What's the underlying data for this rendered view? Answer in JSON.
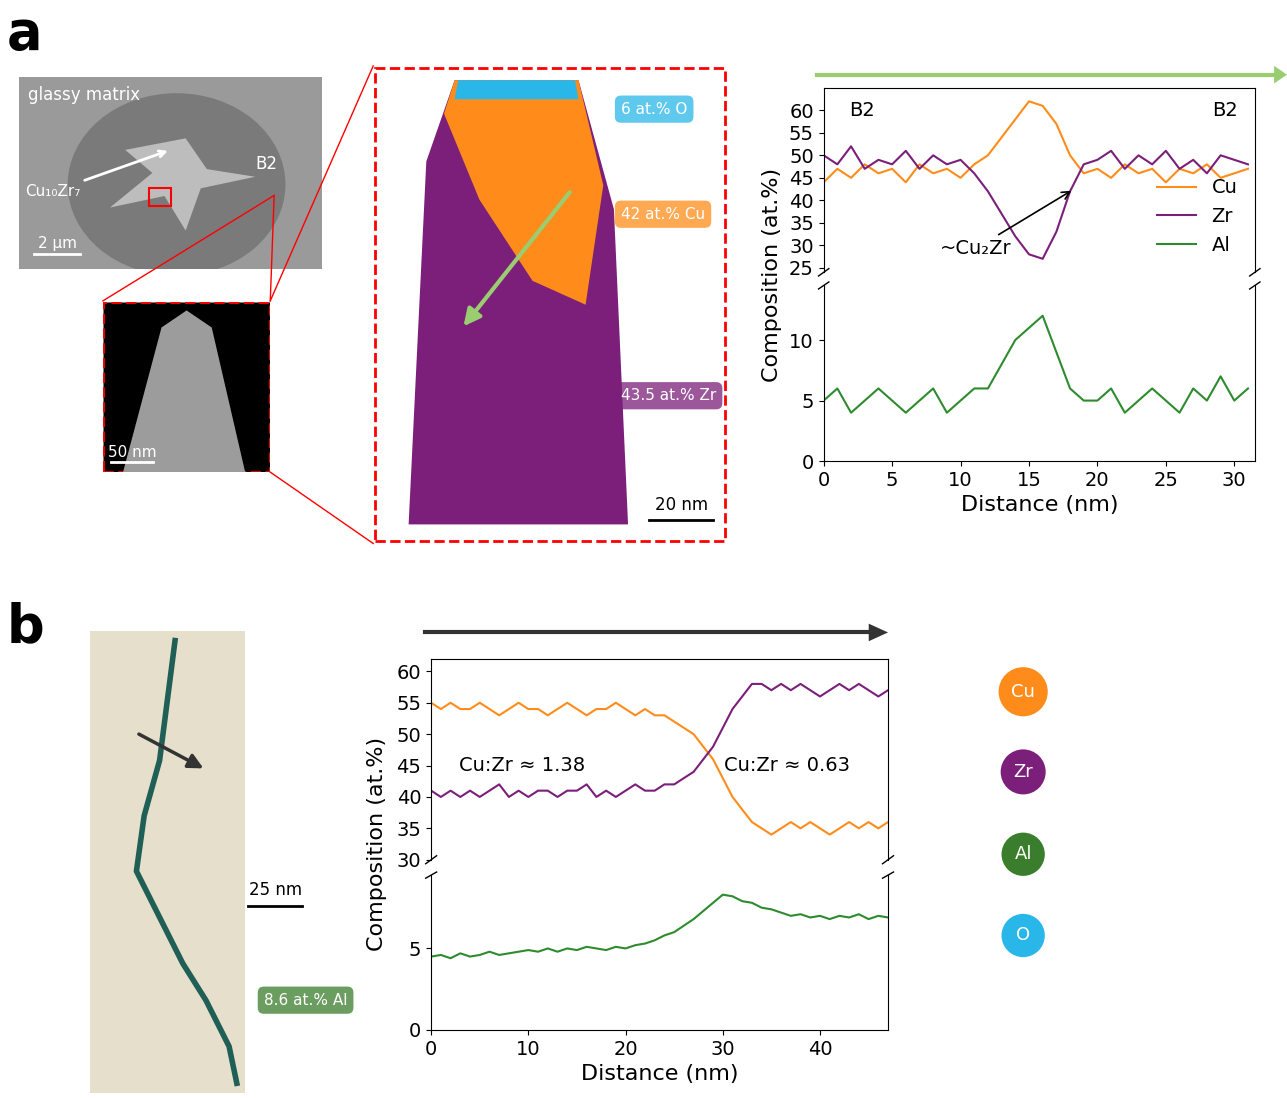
{
  "panel_letters": [
    "a",
    "b"
  ],
  "images": {
    "sem": {
      "labels": [
        "glassy matrix",
        "B2",
        "Cu₁₀Zr₇"
      ],
      "scale": "2 µm"
    },
    "tip": {
      "scale": "50 nm"
    },
    "apt_a": {
      "tags": [
        {
          "text": "6 at.% O",
          "color": "#29b6e8"
        },
        {
          "text": "42 at.% Cu",
          "color": "#ff8c1a"
        },
        {
          "text": "43.5 at.% Zr",
          "color": "#7b1f7a"
        }
      ],
      "scale": "20 nm"
    },
    "apt_b": {
      "tags": [
        {
          "text": "8.6 at.% Al",
          "color": "#3a7d2c"
        }
      ],
      "scale": "25 nm"
    }
  },
  "element_key": [
    {
      "name": "Cu",
      "color": "#ff8c1a"
    },
    {
      "name": "Zr",
      "color": "#7b1f7a"
    },
    {
      "name": "Al",
      "color": "#3a7d2c"
    },
    {
      "name": "O",
      "color": "#29b6e8"
    }
  ],
  "chart_data": [
    {
      "type": "line",
      "x": [
        0,
        1,
        2,
        3,
        4,
        5,
        6,
        7,
        8,
        9,
        10,
        11,
        12,
        13,
        14,
        15,
        16,
        17,
        18,
        19,
        20,
        21,
        22,
        23,
        24,
        25,
        26,
        27,
        28,
        29,
        30,
        31
      ],
      "xlim": [
        0,
        31.5
      ],
      "xticks": [
        0,
        5,
        10,
        15,
        20,
        25,
        30
      ],
      "xlabel": "Distance (nm)",
      "ylabel": "Composition (at.%)",
      "segments": [
        {
          "ylim": [
            24,
            65
          ],
          "yticks": [
            25,
            30,
            35,
            40,
            45,
            50,
            55,
            60
          ]
        },
        {
          "ylim": [
            0,
            14.5
          ],
          "yticks": [
            0,
            5,
            10
          ]
        }
      ],
      "legend": "lower right",
      "annotations": [
        "B2",
        "B2",
        "~Cu₂Zr"
      ],
      "series": [
        {
          "name": "Cu",
          "color": "#ff8c1a",
          "values": [
            44,
            47,
            45,
            48,
            46,
            47,
            44,
            48,
            46,
            47,
            45,
            48,
            50,
            54,
            58,
            62,
            61,
            57,
            50,
            46,
            47,
            45,
            48,
            46,
            47,
            44,
            47,
            46,
            48,
            45,
            46,
            47
          ]
        },
        {
          "name": "Zr",
          "color": "#7b1f7a",
          "values": [
            50,
            48,
            52,
            47,
            49,
            48,
            51,
            47,
            50,
            48,
            49,
            46,
            42,
            37,
            32,
            28,
            27,
            33,
            42,
            48,
            49,
            51,
            47,
            50,
            48,
            51,
            47,
            49,
            46,
            50,
            49,
            48
          ]
        },
        {
          "name": "Al",
          "color": "#2e8b2e",
          "values": [
            5,
            6,
            4,
            5,
            6,
            5,
            4,
            5,
            6,
            4,
            5,
            6,
            6,
            8,
            10,
            11,
            12,
            9,
            6,
            5,
            5,
            6,
            4,
            5,
            6,
            5,
            4,
            6,
            5,
            7,
            5,
            6
          ]
        }
      ]
    },
    {
      "type": "line",
      "x": [
        0,
        1,
        2,
        3,
        4,
        5,
        6,
        7,
        8,
        9,
        10,
        11,
        12,
        13,
        14,
        15,
        16,
        17,
        18,
        19,
        20,
        21,
        22,
        23,
        24,
        25,
        26,
        27,
        28,
        29,
        30,
        31,
        32,
        33,
        34,
        35,
        36,
        37,
        38,
        39,
        40,
        41,
        42,
        43,
        44,
        45,
        46,
        47
      ],
      "xlim": [
        0,
        47
      ],
      "xticks": [
        0,
        10,
        20,
        30,
        40
      ],
      "xlabel": "Distance (nm)",
      "ylabel": "Composition (at.%)",
      "segments": [
        {
          "ylim": [
            30,
            62
          ],
          "yticks": [
            30,
            35,
            40,
            45,
            50,
            55,
            60
          ]
        },
        {
          "ylim": [
            0,
            9.5
          ],
          "yticks": [
            0,
            5
          ]
        }
      ],
      "annotations": [
        "Cu:Zr ≈ 1.38",
        "Cu:Zr ≈ 0.63"
      ],
      "series": [
        {
          "name": "Cu",
          "color": "#ff8c1a",
          "values": [
            55,
            54,
            55,
            54,
            54,
            55,
            54,
            53,
            54,
            55,
            54,
            54,
            53,
            54,
            55,
            54,
            53,
            54,
            54,
            55,
            54,
            53,
            54,
            53,
            53,
            52,
            51,
            50,
            48,
            46,
            43,
            40,
            38,
            36,
            35,
            34,
            35,
            36,
            35,
            36,
            35,
            34,
            35,
            36,
            35,
            36,
            35,
            36
          ]
        },
        {
          "name": "Zr",
          "color": "#7b1f7a",
          "values": [
            41,
            40,
            41,
            40,
            41,
            40,
            41,
            42,
            40,
            41,
            40,
            41,
            41,
            40,
            41,
            41,
            42,
            40,
            41,
            40,
            41,
            42,
            41,
            41,
            42,
            42,
            43,
            44,
            46,
            48,
            51,
            54,
            56,
            58,
            58,
            57,
            58,
            57,
            58,
            57,
            56,
            57,
            58,
            57,
            58,
            57,
            56,
            57
          ]
        },
        {
          "name": "Al",
          "color": "#2e8b2e",
          "values": [
            4.5,
            4.6,
            4.4,
            4.7,
            4.5,
            4.6,
            4.8,
            4.6,
            4.7,
            4.8,
            4.9,
            4.8,
            5.0,
            4.8,
            5.0,
            4.9,
            5.1,
            5.0,
            4.9,
            5.1,
            5.0,
            5.2,
            5.3,
            5.5,
            5.8,
            6.0,
            6.4,
            6.8,
            7.3,
            7.8,
            8.3,
            8.2,
            7.9,
            7.8,
            7.5,
            7.4,
            7.2,
            7.0,
            7.1,
            6.9,
            7.0,
            6.8,
            7.0,
            6.9,
            7.1,
            6.8,
            7.0,
            6.9
          ]
        }
      ]
    }
  ]
}
